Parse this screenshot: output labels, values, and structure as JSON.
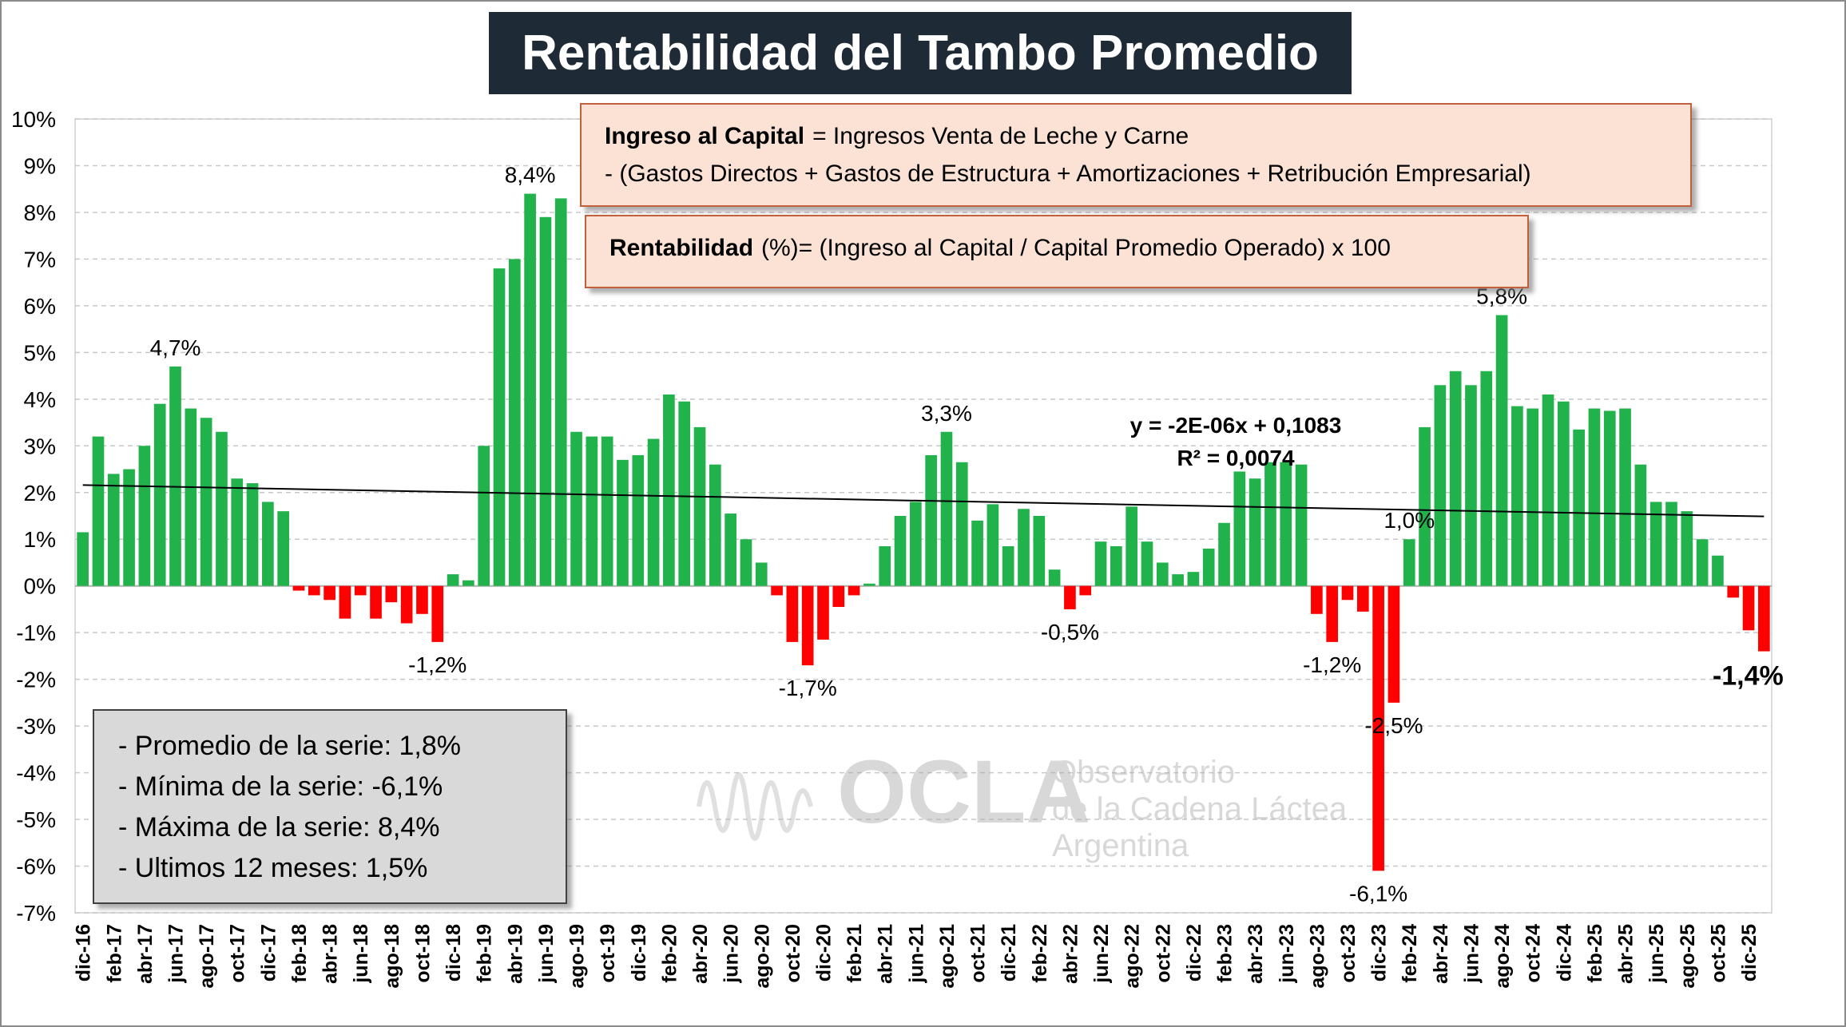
{
  "chart_data": {
    "type": "bar",
    "title": "Rentabilidad del Tambo Promedio",
    "categories": [
      "dic-16",
      null,
      "feb-17",
      null,
      "abr-17",
      null,
      "jun-17",
      null,
      "ago-17",
      null,
      "oct-17",
      null,
      "dic-17",
      null,
      "feb-18",
      null,
      "abr-18",
      null,
      "jun-18",
      null,
      "ago-18",
      null,
      "oct-18",
      null,
      "dic-18",
      null,
      "feb-19",
      null,
      "abr-19",
      null,
      "jun-19",
      null,
      "ago-19",
      null,
      "oct-19",
      null,
      "dic-19",
      null,
      "feb-20",
      null,
      "abr-20",
      null,
      "jun-20",
      null,
      "ago-20",
      null,
      "oct-20",
      null,
      "dic-20",
      null,
      "feb-21",
      null,
      "abr-21",
      null,
      "jun-21",
      null,
      "ago-21",
      null,
      "oct-21",
      null,
      "dic-21",
      null,
      "feb-22",
      null,
      "abr-22",
      null,
      "jun-22",
      null,
      "ago-22",
      null,
      "oct-22",
      null,
      "dic-22",
      null,
      "feb-23",
      null,
      "abr-23",
      null,
      "jun-23",
      null,
      "ago-23",
      null,
      "oct-23",
      null,
      "dic-23",
      null,
      "feb-24",
      null,
      "abr-24",
      null,
      "jun-24",
      null,
      "ago-24",
      null,
      "oct-24",
      null,
      "dic-24",
      null,
      "feb-25",
      null,
      "abr-25",
      null,
      "jun-25",
      null,
      "ago-25",
      null,
      "oct-25",
      null,
      "dic-25",
      null
    ],
    "values": [
      1.15,
      3.2,
      2.4,
      2.5,
      3.0,
      3.9,
      4.7,
      3.8,
      3.6,
      3.3,
      2.3,
      2.2,
      1.8,
      1.6,
      -0.1,
      -0.2,
      -0.3,
      -0.7,
      -0.2,
      -0.7,
      -0.35,
      -0.8,
      -0.6,
      -1.2,
      0.25,
      0.12,
      3.0,
      6.8,
      7.0,
      8.4,
      7.9,
      8.3,
      3.3,
      3.2,
      3.2,
      2.7,
      2.8,
      3.15,
      4.1,
      3.95,
      3.4,
      2.6,
      1.55,
      1.0,
      0.5,
      -0.2,
      -1.2,
      -1.7,
      -1.15,
      -0.45,
      -0.2,
      0.05,
      0.85,
      1.5,
      1.8,
      2.8,
      3.3,
      2.65,
      1.4,
      1.75,
      0.85,
      1.65,
      1.5,
      0.35,
      -0.5,
      -0.2,
      0.95,
      0.85,
      1.7,
      0.95,
      0.5,
      0.25,
      0.3,
      0.8,
      1.35,
      2.45,
      2.3,
      2.65,
      2.65,
      2.6,
      -0.6,
      -1.2,
      -0.3,
      -0.55,
      -6.1,
      -2.5,
      1.0,
      3.4,
      4.3,
      4.6,
      4.3,
      4.6,
      5.8,
      3.85,
      3.8,
      4.1,
      3.95,
      3.35,
      3.8,
      3.75,
      3.8,
      2.6,
      1.8,
      1.8,
      1.6,
      1.0,
      0.65,
      -0.25,
      -0.95,
      -1.4
    ],
    "value_labels": [
      null,
      null,
      null,
      null,
      null,
      null,
      "4,7%",
      null,
      null,
      null,
      null,
      null,
      null,
      null,
      null,
      null,
      null,
      null,
      null,
      null,
      null,
      null,
      null,
      "-1,2%",
      null,
      null,
      null,
      null,
      null,
      "8,4%",
      null,
      null,
      null,
      null,
      null,
      null,
      null,
      null,
      null,
      null,
      null,
      null,
      null,
      null,
      null,
      null,
      null,
      "-1,7%",
      null,
      null,
      null,
      null,
      null,
      null,
      null,
      null,
      "3,3%",
      null,
      null,
      null,
      null,
      null,
      null,
      null,
      "-0,5%",
      null,
      null,
      null,
      null,
      null,
      null,
      null,
      null,
      null,
      null,
      null,
      null,
      null,
      null,
      null,
      null,
      "-1,2%",
      null,
      null,
      "-6,1%",
      "-2,5%",
      "1,0%",
      null,
      null,
      null,
      null,
      null,
      "5,8%",
      null,
      null,
      null,
      null,
      null,
      null,
      null,
      null,
      null,
      null,
      null,
      null,
      null,
      null,
      null,
      null,
      "-1,4%"
    ],
    "positive_color": "#22b24c",
    "negative_color": "#ff0000",
    "ylim": [
      -7,
      10
    ],
    "yticks": [
      {
        "value": 10,
        "label": "10%"
      },
      {
        "value": 9,
        "label": "9%"
      },
      {
        "value": 8,
        "label": "8%"
      },
      {
        "value": 7,
        "label": "7%"
      },
      {
        "value": 6,
        "label": "6%"
      },
      {
        "value": 5,
        "label": "5%"
      },
      {
        "value": 4,
        "label": "4%"
      },
      {
        "value": 3,
        "label": "3%"
      },
      {
        "value": 2,
        "label": "2%"
      },
      {
        "value": 1,
        "label": "1%"
      },
      {
        "value": 0,
        "label": "0%"
      },
      {
        "value": -1,
        "label": "-1%"
      },
      {
        "value": -2,
        "label": "-2%"
      },
      {
        "value": -3,
        "label": "-3%"
      },
      {
        "value": -4,
        "label": "-4%"
      },
      {
        "value": -5,
        "label": "-5%"
      },
      {
        "value": -6,
        "label": "-6%"
      },
      {
        "value": -7,
        "label": "-7%"
      }
    ],
    "grid": true,
    "trendline": {
      "equation": "y = -2E-06x + 0,1083",
      "r2": "R² = 0,0074"
    },
    "formula": {
      "lhs": "Ingreso  al Capital",
      "rhs": "= Ingresos Venta de Leche y Carne",
      "line2": "-  (Gastos Directos + Gastos de Estructura  + Amortizaciones +  Retribución Empresarial)",
      "rent_lhs": "Rentabilidad",
      "rent_rhs": "(%)= (Ingreso al Capital / Capital Promedio Operado) x 100"
    },
    "stats": [
      "- Promedio de la serie: 1,8%",
      "- Mínima de la serie: -6,1%",
      "- Máxima de la serie: 8,4%",
      "- Ultimos 12 meses:  1,5%"
    ],
    "watermark": {
      "logo": "OCLA",
      "line1": "Observatorio",
      "line2": "de la Cadena Láctea",
      "line3": "Argentina"
    }
  }
}
